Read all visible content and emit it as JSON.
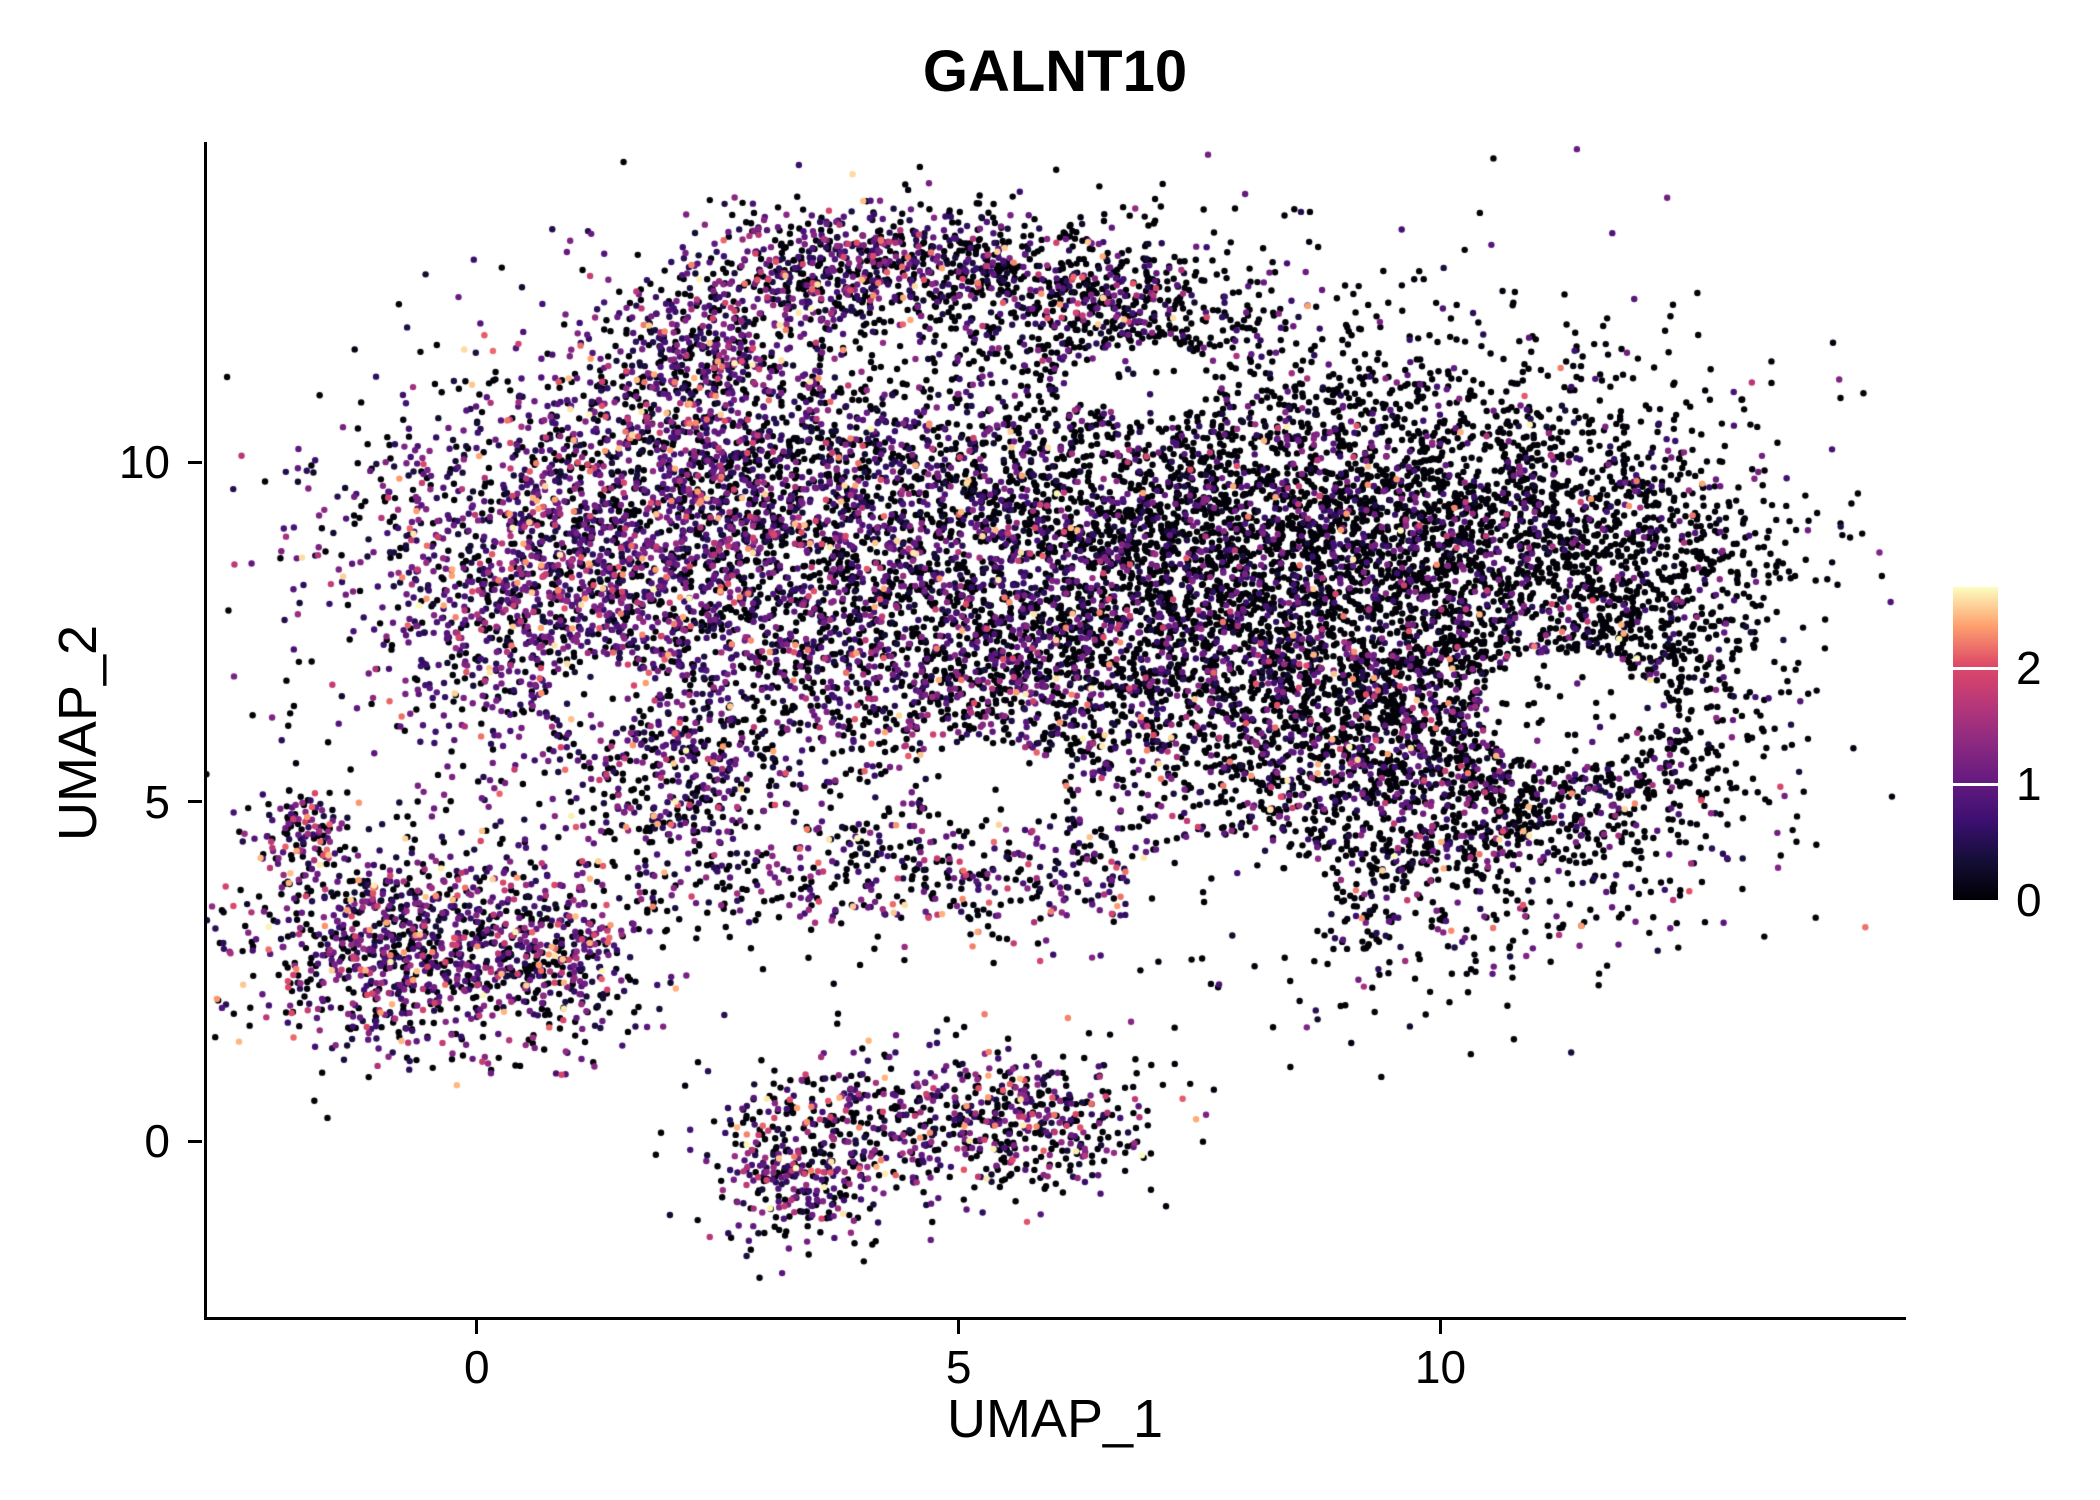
{
  "chart_data": {
    "type": "scatter",
    "title": "GALNT10",
    "subtitle": "",
    "xlabel": "UMAP_1",
    "ylabel": "UMAP_2",
    "xlim": [
      -2.8,
      14.8
    ],
    "ylim": [
      -2.6,
      14.7
    ],
    "grid": false,
    "background_color": "#ffffff",
    "axis_color": "#000000",
    "x_ticks": [
      {
        "value": 0,
        "label": "0"
      },
      {
        "value": 5,
        "label": "5"
      },
      {
        "value": 10,
        "label": "10"
      }
    ],
    "y_ticks": [
      {
        "value": 0,
        "label": "0"
      },
      {
        "value": 5,
        "label": "5"
      },
      {
        "value": 10,
        "label": "10"
      }
    ],
    "legend": {
      "position": "right",
      "vmin": 0,
      "vmax": 2.7,
      "ticks": [
        {
          "value": 0,
          "label": "0"
        },
        {
          "value": 1,
          "label": "1"
        },
        {
          "value": 2,
          "label": "2"
        }
      ],
      "colormap": "magma",
      "stops": [
        {
          "t": 0.0,
          "color": "#000004"
        },
        {
          "t": 0.125,
          "color": "#140e36"
        },
        {
          "t": 0.25,
          "color": "#3b0f70"
        },
        {
          "t": 0.375,
          "color": "#641a80"
        },
        {
          "t": 0.5,
          "color": "#8c2981"
        },
        {
          "t": 0.625,
          "color": "#b73779"
        },
        {
          "t": 0.75,
          "color": "#de4968"
        },
        {
          "t": 0.875,
          "color": "#fe9f6d"
        },
        {
          "t": 1.0,
          "color": "#fcfdbf"
        }
      ]
    },
    "points": {
      "total_points": 19000,
      "value_range": [
        0,
        2.7
      ],
      "encoding": "GALNT10 expression per cell: 0 = black, ~1 = purple, ~2 = orange-red, max = pale yellow",
      "clusters": [
        {
          "cx": 0.7,
          "cy": 8.2,
          "sx": 1.1,
          "sy": 1.5,
          "n": 1700,
          "p0": 0.28,
          "p1": 0.56,
          "p2": 0.16
        },
        {
          "cx": 2.6,
          "cy": 9.6,
          "sx": 1.1,
          "sy": 1.4,
          "n": 1400,
          "p0": 0.42,
          "p1": 0.47,
          "p2": 0.11
        },
        {
          "cx": 2.3,
          "cy": 11.7,
          "sx": 0.55,
          "sy": 0.55,
          "n": 320,
          "p0": 0.38,
          "p1": 0.45,
          "p2": 0.17
        },
        {
          "cx": 3.9,
          "cy": 12.9,
          "sx": 0.85,
          "sy": 0.45,
          "n": 520,
          "p0": 0.4,
          "p1": 0.44,
          "p2": 0.16
        },
        {
          "cx": 5.6,
          "cy": 12.7,
          "sx": 1.0,
          "sy": 0.5,
          "n": 480,
          "p0": 0.6,
          "p1": 0.32,
          "p2": 0.08
        },
        {
          "cx": 6.9,
          "cy": 12.1,
          "sx": 0.6,
          "sy": 0.5,
          "n": 260,
          "p0": 0.72,
          "p1": 0.24,
          "p2": 0.04
        },
        {
          "cx": 4.9,
          "cy": 8.6,
          "sx": 1.5,
          "sy": 1.7,
          "n": 2100,
          "p0": 0.55,
          "p1": 0.38,
          "p2": 0.07
        },
        {
          "cx": 7.9,
          "cy": 8.9,
          "sx": 1.5,
          "sy": 1.5,
          "n": 2700,
          "p0": 0.78,
          "p1": 0.19,
          "p2": 0.03
        },
        {
          "cx": 10.6,
          "cy": 8.9,
          "sx": 1.3,
          "sy": 1.3,
          "n": 1700,
          "p0": 0.82,
          "p1": 0.15,
          "p2": 0.03
        },
        {
          "cx": 12.3,
          "cy": 7.6,
          "sx": 0.65,
          "sy": 1.5,
          "n": 650,
          "p0": 0.85,
          "p1": 0.13,
          "p2": 0.02
        },
        {
          "cx": 9.7,
          "cy": 4.9,
          "sx": 1.4,
          "sy": 1.2,
          "n": 1400,
          "p0": 0.7,
          "p1": 0.22,
          "p2": 0.08
        },
        {
          "cx": 5.9,
          "cy": 6.6,
          "sx": 1.7,
          "sy": 0.9,
          "n": 850,
          "p0": 0.58,
          "p1": 0.34,
          "p2": 0.08
        },
        {
          "cx": 4.4,
          "cy": 3.9,
          "sx": 1.7,
          "sy": 0.45,
          "n": 480,
          "p0": 0.5,
          "p1": 0.35,
          "p2": 0.15
        },
        {
          "cx": 2.1,
          "cy": 5.3,
          "sx": 0.5,
          "sy": 0.8,
          "n": 300,
          "p0": 0.42,
          "p1": 0.42,
          "p2": 0.16
        },
        {
          "cx": -0.6,
          "cy": 2.9,
          "sx": 0.95,
          "sy": 0.8,
          "n": 1050,
          "p0": 0.36,
          "p1": 0.45,
          "p2": 0.19
        },
        {
          "cx": -1.75,
          "cy": 4.5,
          "sx": 0.22,
          "sy": 0.4,
          "n": 110,
          "p0": 0.3,
          "p1": 0.4,
          "p2": 0.3
        },
        {
          "cx": 0.8,
          "cy": 2.5,
          "sx": 0.45,
          "sy": 0.6,
          "n": 240,
          "p0": 0.4,
          "p1": 0.42,
          "p2": 0.18
        },
        {
          "cx": 4.5,
          "cy": 0.3,
          "sx": 1.0,
          "sy": 0.55,
          "n": 520,
          "p0": 0.45,
          "p1": 0.35,
          "p2": 0.2
        },
        {
          "cx": 3.3,
          "cy": -0.6,
          "sx": 0.45,
          "sy": 0.5,
          "n": 230,
          "p0": 0.42,
          "p1": 0.38,
          "p2": 0.2
        },
        {
          "cx": 6.0,
          "cy": 0.3,
          "sx": 0.6,
          "sy": 0.55,
          "n": 240,
          "p0": 0.55,
          "p1": 0.3,
          "p2": 0.15
        },
        {
          "cx": 6.8,
          "cy": 8.2,
          "sx": 3.4,
          "sy": 2.6,
          "n": 700,
          "p0": 0.7,
          "p1": 0.25,
          "p2": 0.05
        },
        {
          "cx": 9.2,
          "cy": 6.6,
          "sx": 1.2,
          "sy": 0.9,
          "n": 600,
          "p0": 0.72,
          "p1": 0.22,
          "p2": 0.06
        },
        {
          "cx": 11.0,
          "cy": 5.6,
          "sx": 0.9,
          "sy": 0.8,
          "n": 450,
          "p0": 0.75,
          "p1": 0.2,
          "p2": 0.05
        }
      ],
      "holes": [
        {
          "cx": 11.35,
          "cy": 6.35,
          "rx": 0.95,
          "ry": 0.85
        },
        {
          "cx": 7.8,
          "cy": 3.6,
          "rx": 1.1,
          "ry": 0.9
        },
        {
          "cx": 6.9,
          "cy": 11.2,
          "rx": 0.75,
          "ry": 0.55
        },
        {
          "cx": 5.3,
          "cy": 5.3,
          "rx": 0.8,
          "ry": 0.55
        },
        {
          "cx": 1.3,
          "cy": 6.6,
          "rx": 0.55,
          "ry": 0.45
        }
      ]
    }
  }
}
